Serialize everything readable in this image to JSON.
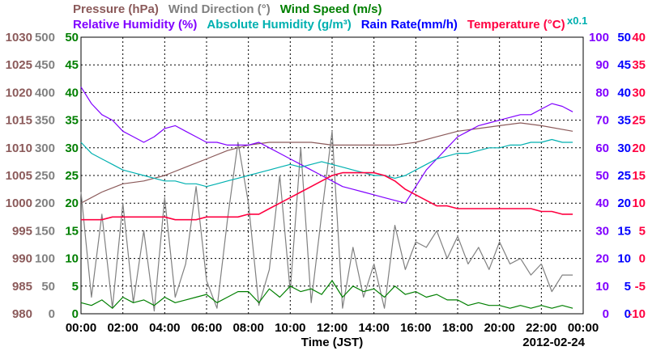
{
  "colors": {
    "pressure": "#8b5a5a",
    "wind_direction": "#808080",
    "wind_speed": "#007f00",
    "relative_humidity": "#8000ff",
    "absolute_humidity": "#00b0b0",
    "rain_rate": "#0000ff",
    "temperature": "#ff0040",
    "grid": "#000000",
    "background": "#ffffff",
    "axis_text": "#000000"
  },
  "legend": {
    "line1": [
      {
        "key": "pressure",
        "text": "Pressure (hPa)"
      },
      {
        "key": "wind_direction",
        "text": "Wind Direction (°)"
      },
      {
        "key": "wind_speed",
        "text": "Wind Speed (m/s)"
      }
    ],
    "line2": [
      {
        "key": "relative_humidity",
        "text": "Relative Humidity (%)"
      },
      {
        "key": "absolute_humidity",
        "text": "Absolute Humidity (g/m³)"
      },
      {
        "key": "rain_rate",
        "text": "Rain Rate(mm/h)"
      },
      {
        "key": "temperature",
        "text": "Temperature (°C)"
      }
    ],
    "scale_note": "x0.1"
  },
  "chart_data": {
    "type": "line",
    "xlabel": "Time (JST)",
    "date_label": "2012-02-24",
    "x_ticks": [
      "00:00",
      "02:00",
      "04:00",
      "06:00",
      "08:00",
      "10:00",
      "12:00",
      "14:00",
      "16:00",
      "18:00",
      "20:00",
      "22:00",
      "00:00"
    ],
    "x_range_hours": [
      0,
      24
    ],
    "grid": true,
    "left_axes": [
      {
        "key": "pressure",
        "ticks": [
          "1030",
          "1025",
          "1020",
          "1015",
          "1010",
          "1005",
          "1000",
          "995",
          "990",
          "985",
          "980"
        ],
        "range": [
          980,
          1030
        ]
      },
      {
        "key": "wind_direction",
        "ticks": [
          "500",
          "450",
          "400",
          "350",
          "300",
          "250",
          "200",
          "150",
          "100",
          "50",
          "0"
        ],
        "range": [
          0,
          500
        ]
      },
      {
        "key": "wind_speed",
        "ticks": [
          "50",
          "45",
          "40",
          "35",
          "30",
          "25",
          "20",
          "15",
          "10",
          "5",
          "0"
        ],
        "range": [
          0,
          50
        ]
      }
    ],
    "right_axes": [
      {
        "key": "relative_humidity",
        "ticks": [
          "100",
          "90",
          "80",
          "70",
          "60",
          "50",
          "40",
          "30",
          "20",
          "10",
          "0"
        ],
        "range": [
          0,
          100
        ]
      },
      {
        "key": "rain_rate",
        "ticks": [
          "50",
          "45",
          "40",
          "35",
          "30",
          "25",
          "20",
          "15",
          "10",
          "5",
          "0"
        ],
        "range": [
          0,
          50
        ]
      },
      {
        "key": "temperature",
        "ticks": [
          "40",
          "35",
          "30",
          "25",
          "20",
          "15",
          "10",
          "5",
          "0",
          "-5",
          "-10"
        ],
        "range": [
          -10,
          40
        ]
      }
    ],
    "series": [
      {
        "name": "Pressure (hPa)",
        "key": "pressure",
        "axis_range": [
          980,
          1030
        ],
        "x": [
          0,
          1,
          2,
          3,
          4,
          5,
          6,
          7,
          8,
          9,
          10,
          11,
          12,
          13,
          14,
          15,
          16,
          17,
          18,
          19,
          20,
          21,
          22,
          23.5
        ],
        "y": [
          1000,
          1002,
          1003.5,
          1004,
          1005,
          1006.5,
          1008,
          1009.5,
          1010.5,
          1011,
          1011,
          1011,
          1010.5,
          1010.5,
          1010.5,
          1010.5,
          1011,
          1012,
          1013,
          1013.5,
          1014,
          1014.5,
          1014,
          1013
        ]
      },
      {
        "name": "Wind Direction (°)",
        "key": "wind_direction",
        "axis_range": [
          0,
          500
        ],
        "x": [
          0,
          0.5,
          1,
          1.5,
          2,
          2.5,
          3,
          3.5,
          4,
          4.5,
          5,
          5.5,
          6,
          6.5,
          7,
          7.5,
          8,
          8.5,
          9,
          9.5,
          10,
          10.5,
          11,
          11.5,
          12,
          12.5,
          13,
          13.5,
          14,
          14.5,
          15,
          15.5,
          16,
          16.5,
          17,
          17.5,
          18,
          18.5,
          19,
          19.5,
          20,
          20.5,
          21,
          21.5,
          22,
          22.5,
          23,
          23.5
        ],
        "y": [
          220,
          30,
          180,
          10,
          200,
          20,
          150,
          5,
          210,
          30,
          90,
          230,
          60,
          10,
          170,
          310,
          200,
          15,
          80,
          250,
          40,
          300,
          20,
          180,
          330,
          10,
          120,
          30,
          90,
          10,
          160,
          80,
          130,
          120,
          150,
          100,
          140,
          90,
          120,
          80,
          130,
          90,
          100,
          70,
          90,
          40,
          70,
          70
        ]
      },
      {
        "name": "Wind Speed (m/s)",
        "key": "wind_speed",
        "axis_range": [
          0,
          50
        ],
        "x": [
          0,
          0.5,
          1,
          1.5,
          2,
          2.5,
          3,
          3.5,
          4,
          4.5,
          5,
          5.5,
          6,
          6.5,
          7,
          7.5,
          8,
          8.5,
          9,
          9.5,
          10,
          10.5,
          11,
          11.5,
          12,
          12.5,
          13,
          13.5,
          14,
          14.5,
          15,
          15.5,
          16,
          16.5,
          17,
          17.5,
          18,
          18.5,
          19,
          19.5,
          20,
          20.5,
          21,
          21.5,
          22,
          22.5,
          23,
          23.5
        ],
        "y": [
          2,
          1.5,
          2.5,
          1,
          3,
          2,
          2.5,
          1.5,
          3,
          2,
          2.5,
          3,
          3.5,
          2,
          3,
          4,
          4,
          2,
          4.5,
          3,
          5,
          4,
          4.5,
          3.5,
          6,
          3,
          5,
          4,
          4.5,
          3,
          5,
          3.5,
          4,
          3,
          3.5,
          2.5,
          2.5,
          1.5,
          2,
          1.5,
          1.5,
          1,
          1.5,
          1,
          1.5,
          1,
          1.5,
          1
        ]
      },
      {
        "name": "Relative Humidity (%)",
        "key": "relative_humidity",
        "axis_range": [
          0,
          100
        ],
        "x": [
          0,
          0.5,
          1,
          1.5,
          2,
          2.5,
          3,
          3.5,
          4,
          4.5,
          5,
          5.5,
          6,
          6.5,
          7,
          7.5,
          8,
          8.5,
          9,
          9.5,
          10,
          10.5,
          11,
          11.5,
          12,
          12.5,
          13,
          13.5,
          14,
          14.5,
          15,
          15.5,
          16,
          16.5,
          17,
          17.5,
          18,
          18.5,
          19,
          19.5,
          20,
          20.5,
          21,
          21.5,
          22,
          22.5,
          23,
          23.5
        ],
        "y": [
          82,
          76,
          72,
          70,
          66,
          64,
          62,
          64,
          67,
          68,
          66,
          64,
          62,
          62,
          61,
          61,
          61,
          62,
          60,
          58,
          56,
          54,
          52,
          50,
          48,
          46,
          45,
          44,
          43,
          42,
          41,
          40,
          46,
          52,
          56,
          60,
          64,
          66,
          68,
          69,
          70,
          71,
          72,
          72,
          74,
          76,
          75,
          73
        ]
      },
      {
        "name": "Absolute Humidity (g/m³)",
        "key": "absolute_humidity",
        "axis_range": [
          0,
          100
        ],
        "x": [
          0,
          0.5,
          1,
          1.5,
          2,
          2.5,
          3,
          3.5,
          4,
          4.5,
          5,
          5.5,
          6,
          6.5,
          7,
          7.5,
          8,
          8.5,
          9,
          9.5,
          10,
          10.5,
          11,
          11.5,
          12,
          12.5,
          13,
          13.5,
          14,
          14.5,
          15,
          15.5,
          16,
          16.5,
          17,
          17.5,
          18,
          18.5,
          19,
          19.5,
          20,
          20.5,
          21,
          21.5,
          22,
          22.5,
          23,
          23.5
        ],
        "y": [
          62,
          58,
          56,
          54,
          52,
          51,
          50,
          49,
          48,
          48,
          47,
          47,
          46,
          47,
          48,
          49,
          50,
          51,
          52,
          53,
          54,
          53,
          54,
          55,
          54,
          53,
          52,
          51,
          50,
          50,
          49,
          50,
          52,
          54,
          56,
          57,
          58,
          58,
          59,
          60,
          60,
          61,
          61,
          62,
          62,
          63,
          62,
          62
        ]
      },
      {
        "name": "Temperature (°C)",
        "key": "temperature",
        "axis_range": [
          -10,
          40
        ],
        "x": [
          0,
          0.5,
          1,
          1.5,
          2,
          2.5,
          3,
          3.5,
          4,
          4.5,
          5,
          5.5,
          6,
          6.5,
          7,
          7.5,
          8,
          8.5,
          9,
          9.5,
          10,
          10.5,
          11,
          11.5,
          12,
          12.5,
          13,
          13.5,
          14,
          14.5,
          15,
          15.5,
          16,
          16.5,
          17,
          17.5,
          18,
          18.5,
          19,
          19.5,
          20,
          20.5,
          21,
          21.5,
          22,
          22.5,
          23,
          23.5
        ],
        "y": [
          7,
          7,
          7,
          7.5,
          7.5,
          7.5,
          7.5,
          7.5,
          7.5,
          7,
          7,
          7,
          7.5,
          7.5,
          7.5,
          7.5,
          8,
          8,
          9,
          10,
          11,
          12,
          13,
          14,
          15,
          15.5,
          15.5,
          15.5,
          15.5,
          15,
          14,
          12.5,
          11.5,
          10.5,
          9.5,
          9.5,
          9,
          9,
          9,
          9,
          9,
          9,
          9,
          9,
          8.5,
          8.5,
          8,
          8
        ]
      }
    ]
  }
}
